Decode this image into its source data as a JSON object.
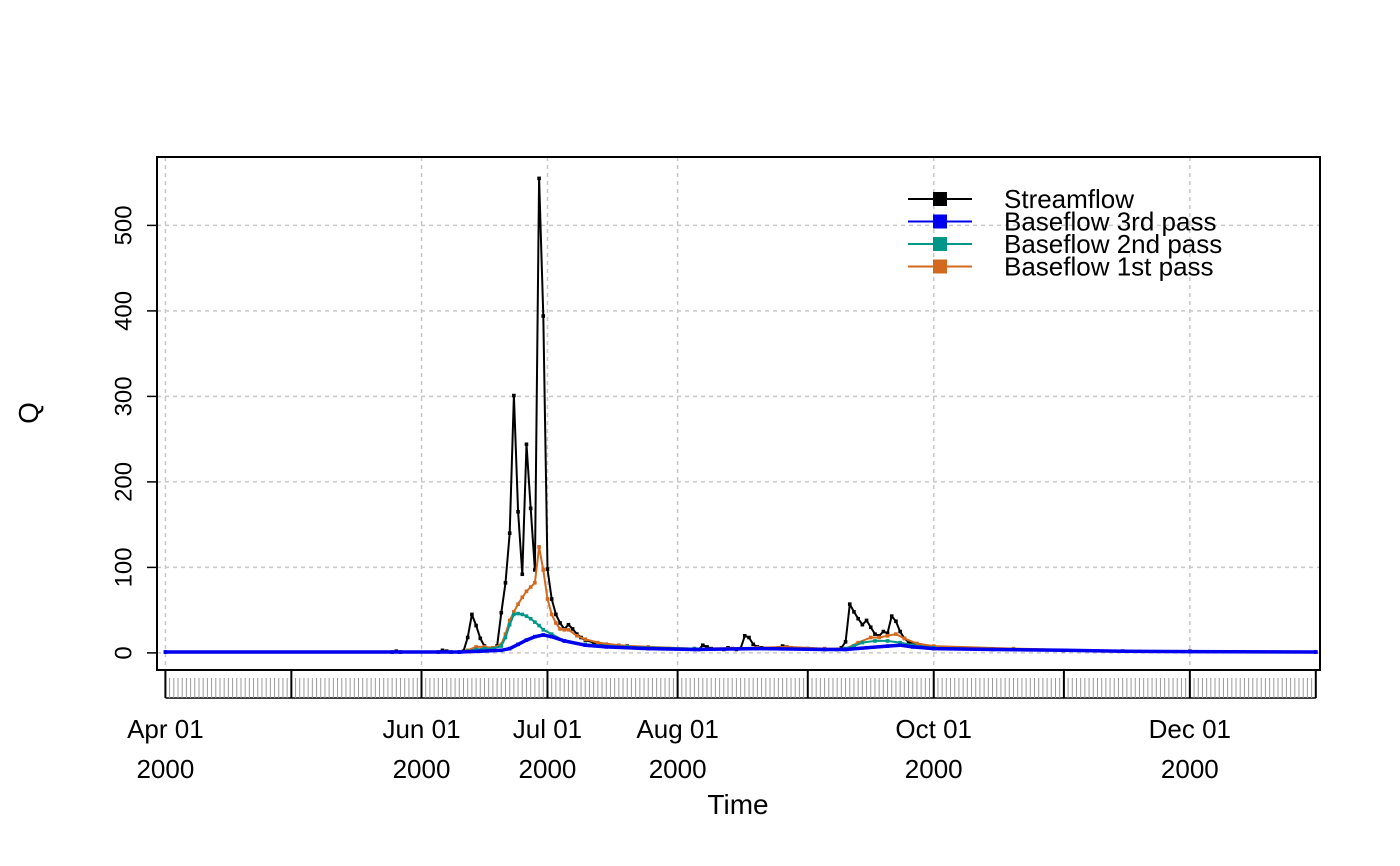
{
  "chart_data": {
    "type": "line",
    "title": "",
    "xlabel": "Time",
    "ylabel": "Q",
    "x_start": "2000-04-01",
    "x_end": "2000-12-31",
    "xlim": [
      "2000-03-30",
      "2001-01-01"
    ],
    "ylim": [
      -20,
      580
    ],
    "grid": true,
    "legend_position": "top-right",
    "x_ticks": [
      {
        "date": "2000-04-01",
        "line1": "Apr 01",
        "line2": "2000"
      },
      {
        "date": "2000-05-01",
        "line1": "",
        "line2": ""
      },
      {
        "date": "2000-06-01",
        "line1": "Jun 01",
        "line2": "2000"
      },
      {
        "date": "2000-07-01",
        "line1": "Jul 01",
        "line2": "2000"
      },
      {
        "date": "2000-08-01",
        "line1": "Aug 01",
        "line2": "2000"
      },
      {
        "date": "2000-09-01",
        "line1": "",
        "line2": ""
      },
      {
        "date": "2000-10-01",
        "line1": "Oct 01",
        "line2": "2000"
      },
      {
        "date": "2000-11-01",
        "line1": "",
        "line2": ""
      },
      {
        "date": "2000-12-01",
        "line1": "Dec 01",
        "line2": "2000"
      },
      {
        "date": "2000-12-31",
        "line1": "",
        "line2": ""
      }
    ],
    "y_ticks": [
      0,
      100,
      200,
      300,
      400,
      500
    ],
    "series": [
      {
        "name": "Streamflow",
        "color": "#000000",
        "points": [
          [
            "2000-04-01",
            1
          ],
          [
            "2000-05-25",
            1
          ],
          [
            "2000-05-26",
            2
          ],
          [
            "2000-05-27",
            1
          ],
          [
            "2000-06-05",
            1
          ],
          [
            "2000-06-06",
            3
          ],
          [
            "2000-06-07",
            2
          ],
          [
            "2000-06-08",
            1
          ],
          [
            "2000-06-10",
            1
          ],
          [
            "2000-06-11",
            2
          ],
          [
            "2000-06-12",
            18
          ],
          [
            "2000-06-13",
            45
          ],
          [
            "2000-06-14",
            32
          ],
          [
            "2000-06-15",
            17
          ],
          [
            "2000-06-16",
            8
          ],
          [
            "2000-06-17",
            4
          ],
          [
            "2000-06-18",
            3
          ],
          [
            "2000-06-19",
            8
          ],
          [
            "2000-06-20",
            47
          ],
          [
            "2000-06-21",
            82
          ],
          [
            "2000-06-22",
            140
          ],
          [
            "2000-06-23",
            301
          ],
          [
            "2000-06-24",
            165
          ],
          [
            "2000-06-25",
            92
          ],
          [
            "2000-06-26",
            244
          ],
          [
            "2000-06-27",
            169
          ],
          [
            "2000-06-28",
            97
          ],
          [
            "2000-06-29",
            555
          ],
          [
            "2000-06-30",
            394
          ],
          [
            "2000-07-01",
            98
          ],
          [
            "2000-07-02",
            63
          ],
          [
            "2000-07-03",
            45
          ],
          [
            "2000-07-04",
            35
          ],
          [
            "2000-07-05",
            28
          ],
          [
            "2000-07-06",
            33
          ],
          [
            "2000-07-07",
            28
          ],
          [
            "2000-07-08",
            22
          ],
          [
            "2000-07-09",
            18
          ],
          [
            "2000-07-10",
            15
          ],
          [
            "2000-07-12",
            12
          ],
          [
            "2000-07-15",
            10
          ],
          [
            "2000-07-20",
            8
          ],
          [
            "2000-07-25",
            6
          ],
          [
            "2000-07-30",
            5
          ],
          [
            "2000-08-06",
            4
          ],
          [
            "2000-08-07",
            9
          ],
          [
            "2000-08-08",
            7
          ],
          [
            "2000-08-09",
            5
          ],
          [
            "2000-08-12",
            4
          ],
          [
            "2000-08-13",
            6
          ],
          [
            "2000-08-14",
            5
          ],
          [
            "2000-08-15",
            4
          ],
          [
            "2000-08-16",
            5
          ],
          [
            "2000-08-17",
            20
          ],
          [
            "2000-08-18",
            18
          ],
          [
            "2000-08-19",
            10
          ],
          [
            "2000-08-20",
            7
          ],
          [
            "2000-08-21",
            6
          ],
          [
            "2000-08-23",
            5
          ],
          [
            "2000-08-25",
            6
          ],
          [
            "2000-08-26",
            8
          ],
          [
            "2000-08-27",
            7
          ],
          [
            "2000-08-28",
            6
          ],
          [
            "2000-09-01",
            5
          ],
          [
            "2000-09-05",
            4
          ],
          [
            "2000-09-08",
            4
          ],
          [
            "2000-09-09",
            6
          ],
          [
            "2000-09-10",
            13
          ],
          [
            "2000-09-11",
            57
          ],
          [
            "2000-09-12",
            48
          ],
          [
            "2000-09-13",
            40
          ],
          [
            "2000-09-14",
            33
          ],
          [
            "2000-09-15",
            38
          ],
          [
            "2000-09-16",
            30
          ],
          [
            "2000-09-17",
            22
          ],
          [
            "2000-09-18",
            20
          ],
          [
            "2000-09-19",
            25
          ],
          [
            "2000-09-20",
            23
          ],
          [
            "2000-09-21",
            43
          ],
          [
            "2000-09-22",
            37
          ],
          [
            "2000-09-23",
            25
          ],
          [
            "2000-09-24",
            17
          ],
          [
            "2000-09-25",
            13
          ],
          [
            "2000-09-26",
            11
          ],
          [
            "2000-09-28",
            9
          ],
          [
            "2000-10-01",
            7
          ],
          [
            "2000-10-10",
            5
          ],
          [
            "2000-10-20",
            4
          ],
          [
            "2000-11-01",
            3
          ],
          [
            "2000-11-15",
            2
          ],
          [
            "2000-12-01",
            2
          ],
          [
            "2000-12-31",
            1
          ]
        ]
      },
      {
        "name": "Baseflow 3rd pass",
        "color": "#0000ee",
        "points": [
          [
            "2000-04-01",
            1
          ],
          [
            "2000-06-10",
            1
          ],
          [
            "2000-06-15",
            2
          ],
          [
            "2000-06-20",
            3
          ],
          [
            "2000-06-22",
            5
          ],
          [
            "2000-06-24",
            10
          ],
          [
            "2000-06-26",
            15
          ],
          [
            "2000-06-28",
            19
          ],
          [
            "2000-06-30",
            21
          ],
          [
            "2000-07-02",
            19
          ],
          [
            "2000-07-05",
            14
          ],
          [
            "2000-07-10",
            9
          ],
          [
            "2000-07-15",
            7
          ],
          [
            "2000-07-25",
            5
          ],
          [
            "2000-08-05",
            4
          ],
          [
            "2000-08-20",
            5
          ],
          [
            "2000-09-05",
            4
          ],
          [
            "2000-09-10",
            4
          ],
          [
            "2000-09-15",
            6
          ],
          [
            "2000-09-20",
            8
          ],
          [
            "2000-09-23",
            9
          ],
          [
            "2000-09-26",
            7
          ],
          [
            "2000-10-01",
            5
          ],
          [
            "2000-10-15",
            4
          ],
          [
            "2000-11-01",
            3
          ],
          [
            "2000-11-15",
            2
          ],
          [
            "2000-12-01",
            1.5
          ],
          [
            "2000-12-31",
            1
          ]
        ]
      },
      {
        "name": "Baseflow 2nd pass",
        "color": "#009688",
        "points": [
          [
            "2000-04-01",
            1
          ],
          [
            "2000-06-10",
            1
          ],
          [
            "2000-06-12",
            2
          ],
          [
            "2000-06-14",
            4
          ],
          [
            "2000-06-16",
            5
          ],
          [
            "2000-06-18",
            5
          ],
          [
            "2000-06-20",
            8
          ],
          [
            "2000-06-21",
            18
          ],
          [
            "2000-06-22",
            33
          ],
          [
            "2000-06-23",
            45
          ],
          [
            "2000-06-24",
            46
          ],
          [
            "2000-06-25",
            45
          ],
          [
            "2000-06-26",
            43
          ],
          [
            "2000-06-27",
            40
          ],
          [
            "2000-06-28",
            36
          ],
          [
            "2000-06-29",
            32
          ],
          [
            "2000-06-30",
            27
          ],
          [
            "2000-07-02",
            22
          ],
          [
            "2000-07-05",
            14
          ],
          [
            "2000-07-10",
            10
          ],
          [
            "2000-07-20",
            7
          ],
          [
            "2000-08-05",
            5
          ],
          [
            "2000-09-05",
            4
          ],
          [
            "2000-09-10",
            5
          ],
          [
            "2000-09-12",
            8
          ],
          [
            "2000-09-14",
            12
          ],
          [
            "2000-09-17",
            14
          ],
          [
            "2000-09-20",
            14
          ],
          [
            "2000-09-23",
            12
          ],
          [
            "2000-09-26",
            9
          ],
          [
            "2000-10-01",
            6
          ],
          [
            "2000-10-20",
            4
          ],
          [
            "2000-11-15",
            2
          ],
          [
            "2000-12-31",
            1
          ]
        ]
      },
      {
        "name": "Baseflow 1st pass",
        "color": "#d2691e",
        "points": [
          [
            "2000-04-01",
            1
          ],
          [
            "2000-06-10",
            1
          ],
          [
            "2000-06-12",
            3
          ],
          [
            "2000-06-14",
            7
          ],
          [
            "2000-06-16",
            7
          ],
          [
            "2000-06-18",
            6
          ],
          [
            "2000-06-20",
            10
          ],
          [
            "2000-06-21",
            22
          ],
          [
            "2000-06-22",
            38
          ],
          [
            "2000-06-23",
            48
          ],
          [
            "2000-06-24",
            57
          ],
          [
            "2000-06-25",
            65
          ],
          [
            "2000-06-26",
            72
          ],
          [
            "2000-06-27",
            77
          ],
          [
            "2000-06-28",
            82
          ],
          [
            "2000-06-29",
            124
          ],
          [
            "2000-06-30",
            97
          ],
          [
            "2000-07-01",
            63
          ],
          [
            "2000-07-02",
            45
          ],
          [
            "2000-07-03",
            35
          ],
          [
            "2000-07-04",
            28
          ],
          [
            "2000-07-05",
            27
          ],
          [
            "2000-07-06",
            27
          ],
          [
            "2000-07-08",
            20
          ],
          [
            "2000-07-10",
            16
          ],
          [
            "2000-07-13",
            12
          ],
          [
            "2000-07-18",
            9
          ],
          [
            "2000-07-25",
            7
          ],
          [
            "2000-08-05",
            5
          ],
          [
            "2000-08-20",
            6
          ],
          [
            "2000-08-27",
            7
          ],
          [
            "2000-09-05",
            5
          ],
          [
            "2000-09-10",
            5
          ],
          [
            "2000-09-13",
            12
          ],
          [
            "2000-09-16",
            18
          ],
          [
            "2000-09-18",
            18
          ],
          [
            "2000-09-20",
            20
          ],
          [
            "2000-09-22",
            22
          ],
          [
            "2000-09-24",
            17
          ],
          [
            "2000-09-27",
            11
          ],
          [
            "2000-10-01",
            8
          ],
          [
            "2000-10-20",
            5
          ],
          [
            "2000-11-15",
            2
          ],
          [
            "2000-12-31",
            1
          ]
        ]
      }
    ]
  }
}
